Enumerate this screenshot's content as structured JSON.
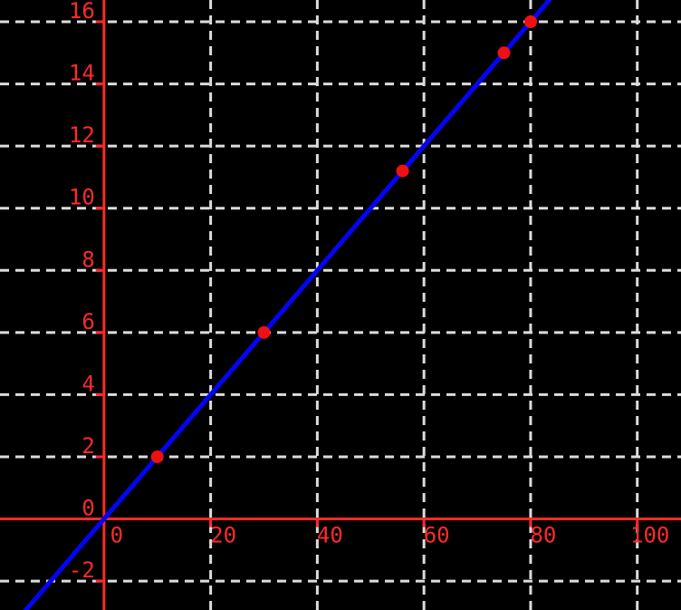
{
  "chart_data": {
    "type": "scatter",
    "title": "",
    "xlabel": "",
    "ylabel": "",
    "points": {
      "x": [
        10,
        30,
        56,
        75,
        80
      ],
      "y": [
        2,
        6,
        11.2,
        15,
        16
      ]
    },
    "fit_line": {
      "slope": 0.2,
      "intercept": 0,
      "equation": "y = 0.2x"
    },
    "x_ticks": [
      0,
      20,
      40,
      60,
      80,
      100
    ],
    "y_ticks": [
      -2,
      0,
      2,
      4,
      6,
      8,
      10,
      12,
      14,
      16
    ],
    "xlim": [
      -19.5,
      108.2
    ],
    "ylim": [
      -2.93,
      16.7
    ],
    "grid": true,
    "grid_style": "dashed",
    "legend": null,
    "colors": {
      "background": "#000000",
      "axis": "#ff2a2a",
      "tick": "#ff2a2a",
      "tick_label": "#ff2a2a",
      "grid": "#dcdcdc",
      "line": "#0404f5",
      "point": "#ee1111"
    }
  }
}
